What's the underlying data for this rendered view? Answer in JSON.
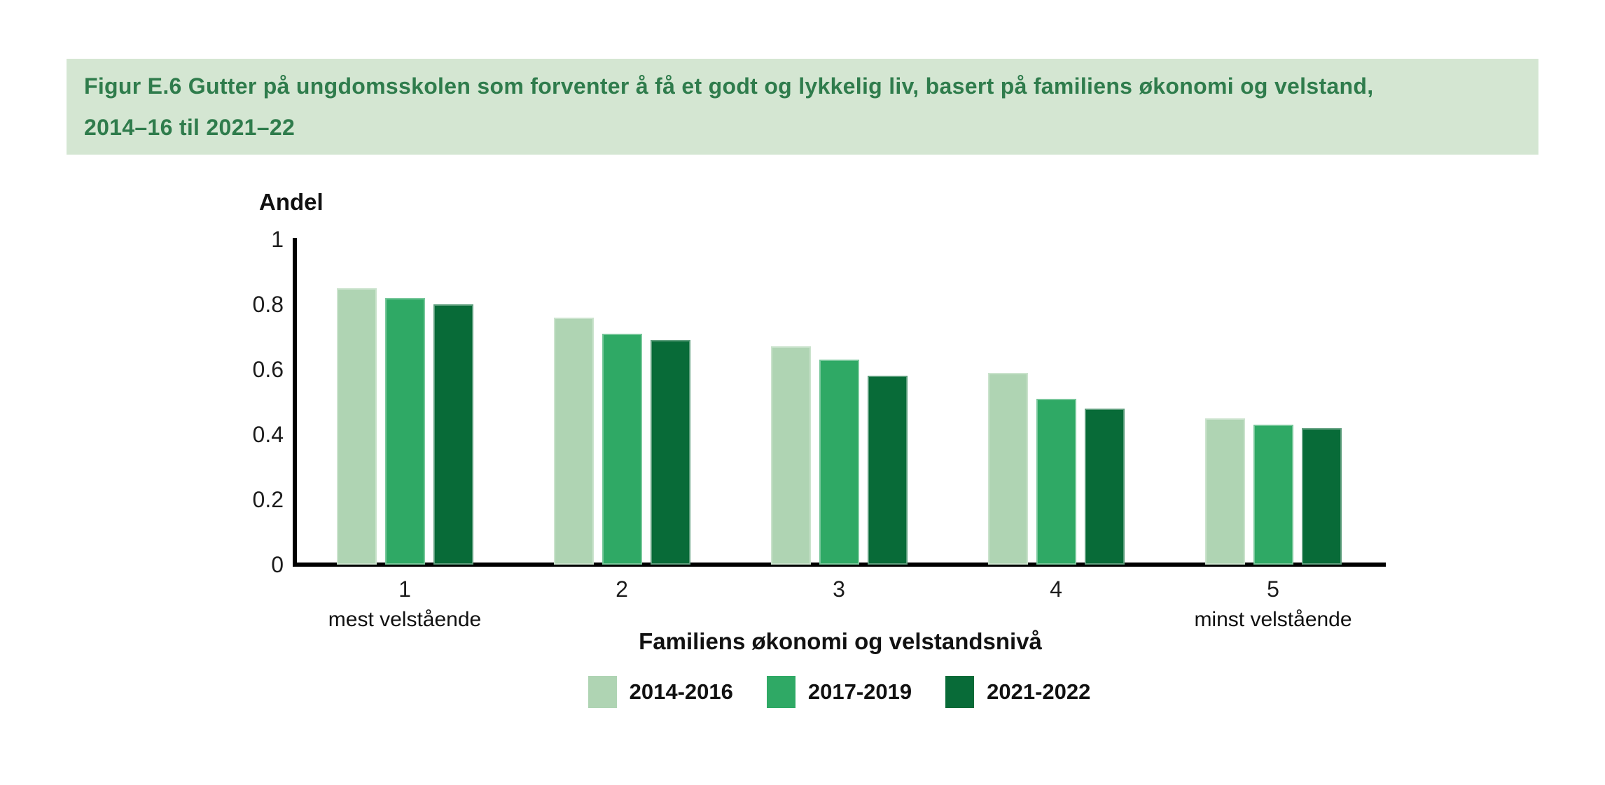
{
  "header": {
    "lines": [
      "Figur E.6 Gutter på ungdomsskolen som forventer å få et godt og lykkelig liv, basert på familiens økonomi og velstand,",
      "2014–16 til 2021–22"
    ],
    "band_bg": "#D4E6D2",
    "text_color": "#2F7C4C"
  },
  "chart_data": {
    "type": "bar",
    "title": "Figur E.6 Gutter på ungdomsskolen som forventer å få et godt og lykkelig liv, basert på familiens økonomi og velstand, 2014–16 til 2021–22",
    "ylabel": "Andel",
    "xlabel": "Familiens økonomi og velstandsnivå",
    "ylim": [
      0,
      1
    ],
    "grid": false,
    "legend_position": "bottom",
    "categories": [
      "1",
      "2",
      "3",
      "4",
      "5"
    ],
    "category_sublabels": [
      "mest velstående",
      "",
      "",
      "",
      "minst velstående"
    ],
    "yticks": [
      {
        "label": "1",
        "value": 1
      },
      {
        "label": "0.8",
        "value": 0.8
      },
      {
        "label": "0.6",
        "value": 0.6
      },
      {
        "label": "0.4",
        "value": 0.4
      },
      {
        "label": "0.2",
        "value": 0.2
      },
      {
        "label": "0",
        "value": 0
      }
    ],
    "series": [
      {
        "name": "2014-2016",
        "color": "#AFD4B3",
        "values": [
          0.85,
          0.76,
          0.67,
          0.59,
          0.45
        ]
      },
      {
        "name": "2017-2019",
        "color": "#2FA965",
        "values": [
          0.82,
          0.71,
          0.63,
          0.51,
          0.43
        ]
      },
      {
        "name": "2021-2022",
        "color": "#086B38",
        "values": [
          0.8,
          0.69,
          0.58,
          0.48,
          0.42
        ]
      }
    ]
  }
}
